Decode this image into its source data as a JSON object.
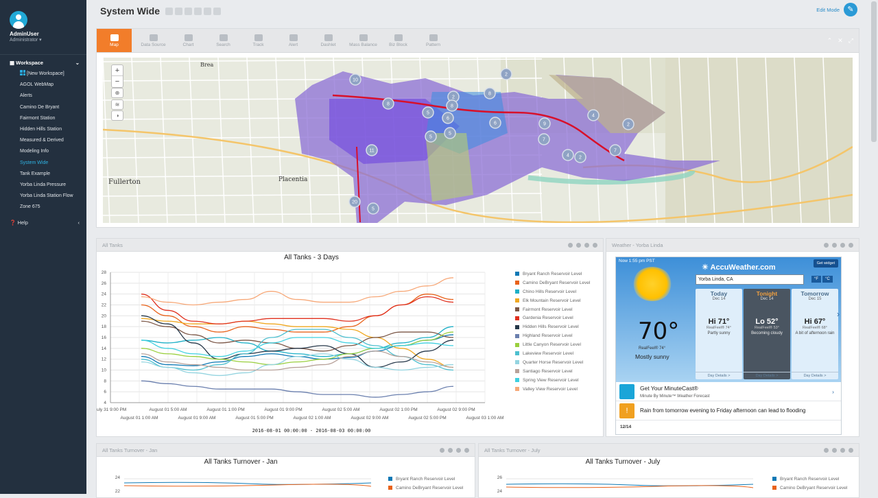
{
  "user": {
    "name": "AdminUser",
    "role": "Administrator"
  },
  "sidebar": {
    "workspace_label": "Workspace",
    "items": [
      "[New Workspace]",
      "AGOL WebMap",
      "Alerts",
      "Camino De Bryant",
      "Fairmont Station",
      "Hidden Hills Station",
      "Measured & Derived",
      "Modeling Info",
      "System Wide",
      "Tank Example",
      "Yorba Linda Pressure",
      "Yorba Linda Station Flow",
      "Zone 675"
    ],
    "active_item": "System Wide",
    "help_label": "Help"
  },
  "header": {
    "title": "System Wide",
    "edit_mode_label": "Edit Mode"
  },
  "toolbar": {
    "tools": [
      "Map",
      "Data Source",
      "Chart",
      "Search",
      "Track",
      "Alert",
      "Dashlet",
      "Mass Balance",
      "Biz Block",
      "Pattern"
    ],
    "active_tool": "Map"
  },
  "map": {
    "places": [
      "Brea",
      "Fullerton",
      "Placentia"
    ],
    "cluster_counts": [
      "10",
      "2",
      "8",
      "8",
      "2",
      "5",
      "6",
      "6",
      "9",
      "7",
      "4",
      "2",
      "7",
      "4",
      "2",
      "11",
      "20",
      "5",
      "8",
      "5",
      "5"
    ]
  },
  "all_tanks_panel": {
    "header": "All Tanks",
    "chart_data": {
      "type": "line",
      "title": "All Tanks - 3 Days",
      "xlabel": "2016-08-01 00:00:00 - 2016-08-03 00:00:00",
      "ylim": [
        4,
        28
      ],
      "y_ticks": [
        "28",
        "26",
        "24",
        "22",
        "20",
        "18",
        "16",
        "14",
        "12",
        "10",
        "8",
        "6",
        "4"
      ],
      "x_ticks_top": [
        "July 31 9:00 PM",
        "August 01 5:00 AM",
        "August 01 1:00 PM",
        "August 01 9:00 PM",
        "August 02 5:00 AM",
        "August 02 1:00 PM",
        "August 02 9:00 PM"
      ],
      "x_ticks_bottom": [
        "August 01 1:00 AM",
        "August 01 9:00 AM",
        "August 01 5:00 PM",
        "August 02 1:00 AM",
        "August 02 9:00 AM",
        "August 02 5:00 PM",
        "August 03 1:00 AM"
      ],
      "series": [
        {
          "name": "Bryant Ranch Reservoir Level",
          "color": "#0e79b5",
          "values": [
            12.5,
            11,
            10.8,
            11.5,
            12.5,
            13,
            12.5,
            12,
            12.3,
            13.5,
            14.5,
            15.5,
            16.5
          ]
        },
        {
          "name": "Camino DeBryant Reservoir Level",
          "color": "#e8621a",
          "values": [
            22,
            20,
            18,
            17,
            18,
            17.5,
            17,
            17,
            18,
            20,
            22,
            24,
            23
          ]
        },
        {
          "name": "Chino Hills Reservoir Level",
          "color": "#1eb0c7",
          "values": [
            15.5,
            15,
            15.5,
            16,
            15,
            13.5,
            13,
            12.5,
            13,
            14,
            15,
            16,
            18
          ]
        },
        {
          "name": "Elk Mountain Reservoir Level",
          "color": "#f0a820",
          "values": [
            19.5,
            19,
            18.5,
            18.5,
            19,
            18.5,
            18,
            18,
            17.5,
            16,
            14,
            12,
            10.5
          ]
        },
        {
          "name": "Fairmont Reservoir Level",
          "color": "#7a5545",
          "values": [
            19,
            18,
            16.5,
            15,
            15.5,
            15,
            14,
            13.5,
            14.5,
            16,
            17,
            17,
            16
          ]
        },
        {
          "name": "Gardenia Reservoir Level",
          "color": "#e0301e",
          "values": [
            24,
            21,
            19,
            18.5,
            19,
            19.5,
            19.5,
            19.5,
            19,
            20,
            22,
            23.5,
            22.5
          ]
        },
        {
          "name": "Hidden Hills Reservoir Level",
          "color": "#243648",
          "values": [
            20,
            18.5,
            15,
            12,
            13,
            13.5,
            14,
            14.5,
            13,
            10.5,
            11.5,
            13.5,
            15.5
          ]
        },
        {
          "name": "Highland Reservoir Level",
          "color": "#6a7fae",
          "values": [
            8,
            7.5,
            7,
            6.5,
            6.5,
            6.5,
            6,
            5.5,
            5.5,
            5,
            5.5,
            6,
            7
          ]
        },
        {
          "name": "Little Canyon Reservoir Level",
          "color": "#9acf3e",
          "values": [
            14,
            13,
            12.5,
            12,
            11.5,
            11,
            11.5,
            12,
            13,
            14,
            14.5,
            15.5,
            17
          ]
        },
        {
          "name": "Lakeview Reservoir Level",
          "color": "#4dbfcf",
          "values": [
            12,
            10.5,
            10,
            11,
            13,
            16,
            17.5,
            17.5,
            16,
            14.5,
            12.5,
            11,
            10
          ]
        },
        {
          "name": "Quarter Horse Reservoir Level",
          "color": "#94d4e0",
          "values": [
            11.5,
            10.5,
            9.5,
            9,
            9.5,
            11,
            12.5,
            13,
            12,
            10.5,
            10,
            10.5,
            11
          ]
        },
        {
          "name": "Santiago Reservoir Level",
          "color": "#b8a29a",
          "values": [
            13,
            11.5,
            11,
            10.5,
            10,
            10,
            10.5,
            11,
            12.5,
            13.5,
            12.5,
            11.5,
            10.5
          ]
        },
        {
          "name": "Spring View Reservoir Level",
          "color": "#3fd0e0",
          "values": [
            15.5,
            14,
            13,
            12.5,
            13.5,
            15,
            16,
            16,
            15,
            14,
            14.5,
            15,
            14.5
          ]
        },
        {
          "name": "Valley View Reservoir Level",
          "color": "#f7a878",
          "values": [
            23.5,
            22.5,
            22,
            22.5,
            23,
            24.5,
            23,
            22.5,
            22.5,
            23.5,
            24.5,
            25.5,
            27
          ]
        }
      ]
    }
  },
  "weather_panel": {
    "header": "Weather - Yorba Linda",
    "now_label": "Now 1:55 pm PST",
    "brand": "AccuWeather.com",
    "get_widget": "Get widget",
    "location": "Yorba Linda, CA",
    "unit_f": "°F",
    "unit_c": "°C",
    "current": {
      "temp": "70°",
      "realfeel": "RealFeel® 74°",
      "condition": "Mostly sunny"
    },
    "forecast": [
      {
        "day": "Today",
        "date": "Dec 14",
        "hi": "Hi 71°",
        "realfeel": "RealFeel® 74°",
        "desc": "Partly sunny",
        "details": "Day Details >"
      },
      {
        "day": "Tonight",
        "date": "Dec 14",
        "hi": "Lo 52°",
        "realfeel": "RealFeel® 53°",
        "desc": "Becoming cloudy",
        "details": "Day Details >"
      },
      {
        "day": "Tomorrow",
        "date": "Dec 15",
        "hi": "Hi 67°",
        "realfeel": "RealFeel® 68°",
        "desc": "A bit of afternoon rain",
        "details": "Day Details >"
      }
    ],
    "minutecast_title": "Get Your MinuteCast®",
    "minutecast_sub": "Minute By Minute™ Weather Forecast",
    "alert_text": "Rain from tomorrow evening to Friday afternoon can lead to flooding",
    "date_label": "12/14"
  },
  "turnover_jan_panel": {
    "header": "All Tanks Turnover - Jan",
    "chart_title": "All Tanks Turnover - Jan",
    "y_ticks": [
      "24",
      "22"
    ],
    "legend": [
      "Bryant Ranch Reservoir Level",
      "Camino DeBryant Reservoir Level"
    ]
  },
  "turnover_july_panel": {
    "header": "All Tanks Turnover - July",
    "chart_title": "All Tanks Turnover - July",
    "y_ticks": [
      "26",
      "24"
    ],
    "legend": [
      "Bryant Ranch Reservoir Level",
      "Camino DeBryant Reservoir Level"
    ]
  }
}
